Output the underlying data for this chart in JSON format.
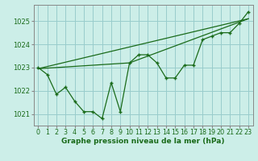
{
  "xlabel": "Graphe pression niveau de la mer (hPa)",
  "bg_color": "#cceee8",
  "grid_color": "#99cccc",
  "line_color": "#1a6b1a",
  "xlim": [
    -0.5,
    23.5
  ],
  "ylim": [
    1020.5,
    1025.7
  ],
  "yticks": [
    1021,
    1022,
    1023,
    1024,
    1025
  ],
  "xticks": [
    0,
    1,
    2,
    3,
    4,
    5,
    6,
    7,
    8,
    9,
    10,
    11,
    12,
    13,
    14,
    15,
    16,
    17,
    18,
    19,
    20,
    21,
    22,
    23
  ],
  "main_x": [
    0,
    1,
    2,
    3,
    4,
    5,
    6,
    7,
    8,
    9,
    10,
    11,
    12,
    13,
    14,
    15,
    16,
    17,
    18,
    19,
    20,
    21,
    22,
    23
  ],
  "main_y": [
    1023.0,
    1022.7,
    1021.85,
    1022.15,
    1021.55,
    1021.1,
    1021.1,
    1020.8,
    1022.35,
    1021.1,
    1023.2,
    1023.55,
    1023.55,
    1023.2,
    1022.55,
    1022.55,
    1023.1,
    1023.1,
    1024.2,
    1024.35,
    1024.5,
    1024.5,
    1024.9,
    1025.4
  ],
  "trend1_x": [
    0,
    23
  ],
  "trend1_y": [
    1022.95,
    1025.1
  ],
  "trend2_x": [
    0,
    10,
    23
  ],
  "trend2_y": [
    1022.95,
    1023.2,
    1025.1
  ],
  "xlabel_fontsize": 6.5,
  "tick_fontsize": 5.8,
  "ytick_fontsize": 6.0
}
